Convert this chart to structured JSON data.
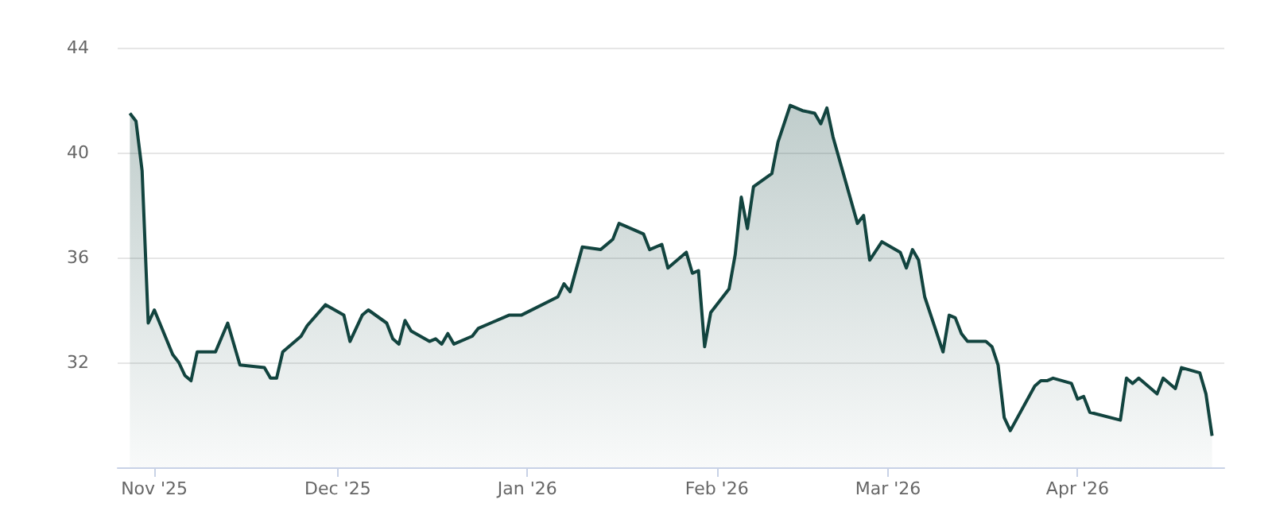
{
  "chart_data": {
    "type": "area",
    "x": [
      "2025-10-28",
      "2025-10-29",
      "2025-10-30",
      "2025-10-31",
      "2025-11-01",
      "2025-11-04",
      "2025-11-05",
      "2025-11-06",
      "2025-11-07",
      "2025-11-08",
      "2025-11-11",
      "2025-11-13",
      "2025-11-15",
      "2025-11-19",
      "2025-11-20",
      "2025-11-21",
      "2025-11-22",
      "2025-11-25",
      "2025-11-26",
      "2025-11-29",
      "2025-12-02",
      "2025-12-03",
      "2025-12-05",
      "2025-12-06",
      "2025-12-09",
      "2025-12-10",
      "2025-12-11",
      "2025-12-12",
      "2025-12-13",
      "2025-12-16",
      "2025-12-17",
      "2025-12-18",
      "2025-12-19",
      "2025-12-20",
      "2025-12-23",
      "2025-12-24",
      "2025-12-26",
      "2025-12-29",
      "2025-12-31",
      "2026-01-06",
      "2026-01-07",
      "2026-01-08",
      "2026-01-10",
      "2026-01-13",
      "2026-01-15",
      "2026-01-16",
      "2026-01-17",
      "2026-01-20",
      "2026-01-21",
      "2026-01-23",
      "2026-01-24",
      "2026-01-27",
      "2026-01-28",
      "2026-01-29",
      "2026-01-30",
      "2026-01-31",
      "2026-02-03",
      "2026-02-04",
      "2026-02-05",
      "2026-02-06",
      "2026-02-07",
      "2026-02-10",
      "2026-02-11",
      "2026-02-13",
      "2026-02-15",
      "2026-02-17",
      "2026-02-18",
      "2026-02-19",
      "2026-02-20",
      "2026-02-24",
      "2026-02-25",
      "2026-02-26",
      "2026-02-28",
      "2026-03-03",
      "2026-03-04",
      "2026-03-05",
      "2026-03-06",
      "2026-03-07",
      "2026-03-10",
      "2026-03-11",
      "2026-03-12",
      "2026-03-13",
      "2026-03-14",
      "2026-03-17",
      "2026-03-18",
      "2026-03-19",
      "2026-03-20",
      "2026-03-21",
      "2026-03-25",
      "2026-03-26",
      "2026-03-27",
      "2026-03-28",
      "2026-03-31",
      "2026-04-01",
      "2026-04-02",
      "2026-04-03",
      "2026-04-08",
      "2026-04-09",
      "2026-04-10",
      "2026-04-11",
      "2026-04-14",
      "2026-04-15",
      "2026-04-17",
      "2026-04-18",
      "2026-04-21",
      "2026-04-22",
      "2026-04-23"
    ],
    "series": [
      {
        "color": "#12443f",
        "values": [
          41.5,
          41.2,
          39.3,
          33.5,
          34.0,
          32.3,
          32.0,
          31.5,
          31.3,
          32.4,
          32.4,
          33.5,
          31.9,
          31.8,
          31.4,
          31.4,
          32.4,
          33.0,
          33.4,
          34.2,
          33.8,
          32.8,
          33.8,
          34.0,
          33.5,
          32.9,
          32.7,
          33.6,
          33.2,
          32.8,
          32.9,
          32.7,
          33.1,
          32.7,
          33.0,
          33.3,
          33.5,
          33.8,
          33.8,
          34.5,
          35.0,
          34.7,
          36.4,
          36.3,
          36.7,
          37.3,
          37.2,
          36.9,
          36.3,
          36.5,
          35.6,
          36.2,
          35.4,
          35.5,
          32.6,
          33.9,
          34.8,
          36.1,
          38.3,
          37.1,
          38.7,
          39.2,
          40.4,
          41.8,
          41.6,
          41.5,
          41.1,
          41.7,
          40.6,
          37.3,
          37.6,
          35.9,
          36.6,
          36.2,
          35.6,
          36.3,
          35.9,
          34.5,
          32.4,
          33.8,
          33.7,
          33.1,
          32.8,
          32.8,
          32.6,
          31.9,
          29.9,
          29.4,
          31.1,
          31.3,
          31.3,
          31.4,
          31.2,
          30.6,
          30.7,
          30.1,
          29.8,
          31.4,
          31.2,
          31.4,
          30.8,
          31.4,
          31.0,
          31.8,
          31.6,
          30.8,
          29.2
        ]
      }
    ],
    "xlim": [
      "2025-10-26",
      "2026-04-25"
    ],
    "xticks": [
      {
        "value": "2025-11-01",
        "label": "Nov '25"
      },
      {
        "value": "2025-12-01",
        "label": "Dec '25"
      },
      {
        "value": "2026-01-01",
        "label": "Jan '26"
      },
      {
        "value": "2026-02-01",
        "label": "Feb '26"
      },
      {
        "value": "2026-03-01",
        "label": "Mar '26"
      },
      {
        "value": "2026-04-01",
        "label": "Apr '26"
      }
    ],
    "ylim": [
      28,
      44
    ],
    "yticks": [
      32,
      36,
      40,
      44
    ],
    "grid": "y",
    "marker": "none"
  }
}
